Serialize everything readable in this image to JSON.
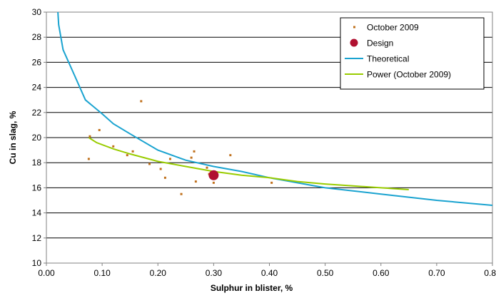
{
  "chart_data": {
    "type": "scatter",
    "xlabel": "Sulphur in blister, %",
    "ylabel": "Cu in slag, %",
    "xlim": [
      0,
      0.8
    ],
    "ylim": [
      10,
      30
    ],
    "x_ticks": [
      "0.00",
      "0.10",
      "0.20",
      "0.30",
      "0.40",
      "0.50",
      "0.60",
      "0.70",
      "0.80"
    ],
    "y_ticks": [
      "10",
      "12",
      "14",
      "16",
      "18",
      "20",
      "22",
      "24",
      "26",
      "28",
      "30"
    ],
    "grid": "horizontal",
    "legend_position": "top-right",
    "series": [
      {
        "name": "October 2009",
        "kind": "scatter",
        "color": "#c0711d",
        "points": [
          [
            0.078,
            20.1
          ],
          [
            0.076,
            18.3
          ],
          [
            0.095,
            20.6
          ],
          [
            0.12,
            19.3
          ],
          [
            0.145,
            18.6
          ],
          [
            0.155,
            18.9
          ],
          [
            0.17,
            22.9
          ],
          [
            0.185,
            17.9
          ],
          [
            0.205,
            17.5
          ],
          [
            0.213,
            16.8
          ],
          [
            0.222,
            18.3
          ],
          [
            0.242,
            15.5
          ],
          [
            0.26,
            18.4
          ],
          [
            0.265,
            18.9
          ],
          [
            0.268,
            16.5
          ],
          [
            0.288,
            17.6
          ],
          [
            0.292,
            17.1
          ],
          [
            0.3,
            16.4
          ],
          [
            0.33,
            18.6
          ],
          [
            0.404,
            16.4
          ]
        ]
      },
      {
        "name": "Design",
        "kind": "marker",
        "color": "#b01030",
        "points": [
          [
            0.3,
            17.0
          ]
        ]
      },
      {
        "name": "Theoretical",
        "kind": "line",
        "color": "#1aa3d0",
        "points": [
          [
            0.02,
            30.5
          ],
          [
            0.022,
            29
          ],
          [
            0.03,
            27
          ],
          [
            0.05,
            25
          ],
          [
            0.07,
            23
          ],
          [
            0.1,
            21.9
          ],
          [
            0.12,
            21.1
          ],
          [
            0.15,
            20.3
          ],
          [
            0.2,
            19.0
          ],
          [
            0.25,
            18.2
          ],
          [
            0.3,
            17.7
          ],
          [
            0.35,
            17.3
          ],
          [
            0.4,
            16.8
          ],
          [
            0.5,
            16.0
          ],
          [
            0.6,
            15.5
          ],
          [
            0.7,
            15.0
          ],
          [
            0.8,
            14.6
          ]
        ]
      },
      {
        "name": "Power (October 2009)",
        "kind": "line",
        "color": "#99cc00",
        "points": [
          [
            0.076,
            20.0
          ],
          [
            0.09,
            19.6
          ],
          [
            0.12,
            19.1
          ],
          [
            0.15,
            18.7
          ],
          [
            0.2,
            18.1
          ],
          [
            0.25,
            17.7
          ],
          [
            0.3,
            17.3
          ],
          [
            0.35,
            17.0
          ],
          [
            0.4,
            16.8
          ],
          [
            0.45,
            16.5
          ],
          [
            0.5,
            16.3
          ],
          [
            0.55,
            16.15
          ],
          [
            0.6,
            16.0
          ],
          [
            0.65,
            15.85
          ]
        ]
      }
    ]
  }
}
